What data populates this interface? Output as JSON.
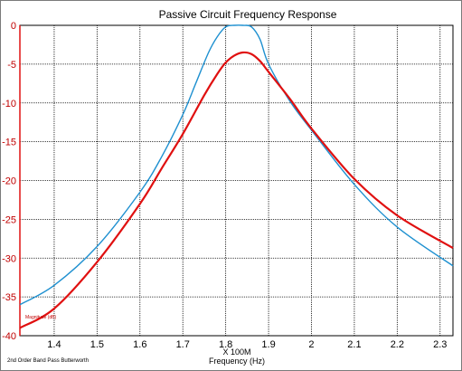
{
  "chart_data": {
    "type": "line",
    "title": "Passive Circuit Frequency Response",
    "xlabel": "Frequency (Hz)",
    "x_multiplier_label": "X 100M",
    "ylabel": "Magnitude (dB)",
    "footnote": "2nd Order Band Pass Butterworth",
    "xlim": [
      1.32,
      2.33
    ],
    "ylim": [
      -40,
      0
    ],
    "x_ticks": [
      1.4,
      1.5,
      1.6,
      1.7,
      1.8,
      1.9,
      2,
      2.1,
      2.2,
      2.3
    ],
    "x_tick_labels": [
      "1.4",
      "1.5",
      "1.6",
      "1.7",
      "1.8",
      "1.9",
      "2",
      "2.1",
      "2.2",
      "2.3"
    ],
    "y_ticks": [
      0,
      -5,
      -10,
      -15,
      -20,
      -25,
      -30,
      -35,
      -40
    ],
    "y_tick_labels": [
      "0",
      "-5",
      "-10",
      "-15",
      "-20",
      "-25",
      "-30",
      "-35",
      "-40"
    ],
    "grid": true,
    "series": [
      {
        "color": "#1e90d0",
        "x": [
          1.32,
          1.4,
          1.5,
          1.6,
          1.65,
          1.7,
          1.73,
          1.76,
          1.78,
          1.8,
          1.82,
          1.84,
          1.86,
          1.88,
          1.9,
          1.95,
          2.0,
          2.1,
          2.2,
          2.33
        ],
        "y": [
          -36,
          -33.5,
          -28.5,
          -21.5,
          -17,
          -11.5,
          -7.5,
          -3.5,
          -1.5,
          -0.2,
          0,
          0,
          -0.2,
          -1.8,
          -5,
          -9.8,
          -13.5,
          -20.5,
          -26,
          -31
        ]
      },
      {
        "color": "#e01010",
        "x": [
          1.32,
          1.4,
          1.5,
          1.6,
          1.65,
          1.7,
          1.75,
          1.78,
          1.8,
          1.82,
          1.84,
          1.86,
          1.88,
          1.9,
          1.95,
          2.0,
          2.1,
          2.2,
          2.33
        ],
        "y": [
          -39,
          -36.5,
          -30.5,
          -23,
          -18.5,
          -14,
          -9,
          -6.3,
          -4.8,
          -3.9,
          -3.5,
          -3.7,
          -4.6,
          -6,
          -9.5,
          -13.3,
          -19.8,
          -24.5,
          -28.7
        ]
      }
    ]
  }
}
